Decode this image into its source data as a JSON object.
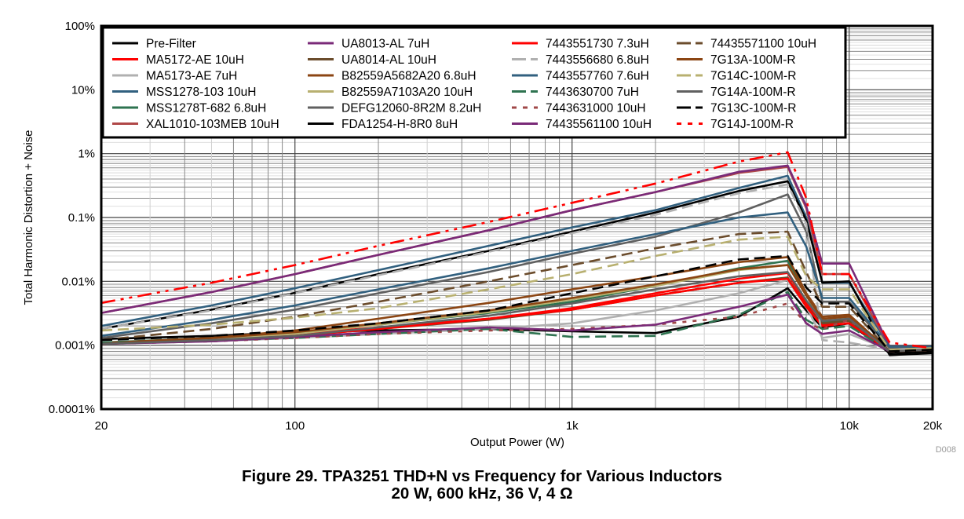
{
  "figure": {
    "caption_line1": "Figure 29. TPA3251 THD+N vs Frequency for Various Inductors",
    "caption_line2": "20 W, 600 kHz, 36 V, 4 Ω",
    "figure_code": "D008"
  },
  "chart_data": {
    "type": "line",
    "title": "Figure 29. TPA3251 THD+N vs Frequency for Various Inductors",
    "subtitle": "20 W, 600 kHz, 36 V, 4 Ω",
    "xlabel": "Output Power (W)",
    "ylabel": "Total Harmonic Distortion + Noise",
    "xscale": "log",
    "yscale": "log",
    "xlim": [
      20,
      20000
    ],
    "ylim": [
      0.0001,
      100
    ],
    "grid": true,
    "legend_position": "top-center",
    "x_ticks": [
      {
        "value": 20,
        "label": "20"
      },
      {
        "value": 100,
        "label": "100"
      },
      {
        "value": 1000,
        "label": "1k"
      },
      {
        "value": 10000,
        "label": "10k"
      },
      {
        "value": 20000,
        "label": "20k"
      }
    ],
    "y_ticks": [
      {
        "value": 100,
        "label": "100%"
      },
      {
        "value": 10,
        "label": "10%"
      },
      {
        "value": 1,
        "label": "1%"
      },
      {
        "value": 0.1,
        "label": "0.1%"
      },
      {
        "value": 0.01,
        "label": "0.01%"
      },
      {
        "value": 0.001,
        "label": "0.001%"
      },
      {
        "value": 0.0001,
        "label": "0.0001%"
      }
    ],
    "x": [
      20,
      50,
      100,
      200,
      500,
      1000,
      2000,
      4000,
      6000,
      7000,
      8000,
      10000,
      14000,
      20000
    ],
    "series": [
      {
        "name": "Pre-Filter",
        "color": "#000000",
        "dash": "solid",
        "values": [
          0.00125,
          0.0014,
          0.0016,
          0.0017,
          0.0018,
          0.00165,
          0.00155,
          0.0028,
          0.0078,
          0.0035,
          0.0019,
          0.0022,
          0.00075,
          0.0008
        ]
      },
      {
        "name": "MA5172-AE 10uH",
        "color": "#ff0000",
        "dash": "solid",
        "values": [
          0.00105,
          0.0012,
          0.0015,
          0.0019,
          0.0026,
          0.0038,
          0.0065,
          0.011,
          0.0135,
          0.0045,
          0.0021,
          0.0024,
          0.0008,
          0.00085
        ]
      },
      {
        "name": "MA5173-AE 7uH",
        "color": "#b0b0b0",
        "dash": "solid",
        "values": [
          0.00105,
          0.00115,
          0.0013,
          0.0015,
          0.0018,
          0.0022,
          0.0035,
          0.0065,
          0.0105,
          0.004,
          0.0013,
          0.0015,
          0.00085,
          0.0009
        ]
      },
      {
        "name": "MSS1278-103 10uH",
        "color": "#31607f",
        "dash": "solid",
        "values": [
          0.002,
          0.0042,
          0.0078,
          0.015,
          0.036,
          0.07,
          0.13,
          0.29,
          0.45,
          0.1,
          0.0095,
          0.0095,
          0.00095,
          0.00095
        ]
      },
      {
        "name": "MSS1278T-682 6.8uH",
        "color": "#2e7350",
        "dash": "solid",
        "values": [
          0.0011,
          0.0013,
          0.0016,
          0.0021,
          0.0032,
          0.0048,
          0.0085,
          0.016,
          0.021,
          0.006,
          0.0023,
          0.0026,
          0.0008,
          0.00085
        ]
      },
      {
        "name": "XAL1010-103MEB 10uH",
        "color": "#b04848",
        "dash": "solid",
        "values": [
          0.0032,
          0.0068,
          0.013,
          0.026,
          0.063,
          0.13,
          0.25,
          0.5,
          0.62,
          0.14,
          0.013,
          0.013,
          0.00095,
          0.00095
        ]
      },
      {
        "name": "UA8013-AL 7uH",
        "color": "#7a2a78",
        "dash": "solid",
        "values": [
          0.0032,
          0.0068,
          0.013,
          0.026,
          0.063,
          0.13,
          0.25,
          0.52,
          0.65,
          0.15,
          0.019,
          0.019,
          0.00095,
          0.00095
        ]
      },
      {
        "name": "UA8014-AL 10uH",
        "color": "#6b4c2c",
        "dash": "solid",
        "values": [
          0.00105,
          0.0012,
          0.0014,
          0.0018,
          0.0025,
          0.0036,
          0.006,
          0.0095,
          0.0115,
          0.004,
          0.0022,
          0.0024,
          0.0008,
          0.00085
        ]
      },
      {
        "name": "B82559A5682A20 6.8uH",
        "color": "#8b4513",
        "dash": "solid",
        "values": [
          0.00108,
          0.0013,
          0.0017,
          0.0026,
          0.0046,
          0.0075,
          0.012,
          0.02,
          0.024,
          0.0065,
          0.0028,
          0.003,
          0.0008,
          0.00085
        ]
      },
      {
        "name": "B82559A7103A20 10uH",
        "color": "#b8b070",
        "dash": "solid",
        "values": [
          0.00105,
          0.0012,
          0.0015,
          0.0021,
          0.0033,
          0.0052,
          0.0085,
          0.015,
          0.018,
          0.006,
          0.0025,
          0.0027,
          0.0008,
          0.00085
        ]
      },
      {
        "name": "DEFG12060-8R2M 8.2uH",
        "color": "#606060",
        "dash": "solid",
        "values": [
          0.0013,
          0.0022,
          0.0036,
          0.0065,
          0.014,
          0.027,
          0.05,
          0.12,
          0.23,
          0.06,
          0.0048,
          0.0048,
          0.0009,
          0.0009
        ]
      },
      {
        "name": "FDA1254-H-8R0 8uH",
        "color": "#000000",
        "dash": "solid",
        "values": [
          0.0018,
          0.0036,
          0.0066,
          0.013,
          0.03,
          0.06,
          0.12,
          0.26,
          0.37,
          0.09,
          0.0095,
          0.01,
          0.0007,
          0.00075
        ]
      },
      {
        "name": "7443551730 7.3uH",
        "color": "#ff0000",
        "dash": "solid",
        "values": [
          0.00105,
          0.00118,
          0.0014,
          0.0018,
          0.0026,
          0.0036,
          0.006,
          0.0095,
          0.011,
          0.004,
          0.002,
          0.0022,
          0.0008,
          0.00085
        ]
      },
      {
        "name": "7443556680 6.8uH",
        "color": "#b0b0b0",
        "dash": "dashed",
        "values": [
          0.0018,
          0.0035,
          0.0065,
          0.0125,
          0.029,
          0.057,
          0.11,
          0.24,
          0.33,
          0.08,
          0.0012,
          0.0011,
          0.00085,
          0.0009
        ]
      },
      {
        "name": "7443557760 7.6uH",
        "color": "#31607f",
        "dash": "solid",
        "values": [
          0.0014,
          0.0025,
          0.0042,
          0.0075,
          0.016,
          0.03,
          0.055,
          0.1,
          0.12,
          0.035,
          0.0055,
          0.0055,
          0.00095,
          0.00095
        ]
      },
      {
        "name": "7443630700 7uH",
        "color": "#2e7350",
        "dash": "dashed",
        "values": [
          0.0011,
          0.00118,
          0.0013,
          0.0015,
          0.0018,
          0.00135,
          0.0014,
          0.003,
          0.0068,
          0.0025,
          0.0018,
          0.002,
          0.0008,
          0.00085
        ]
      },
      {
        "name": "7443631000 10uH",
        "color": "#a04848",
        "dash": "dotted",
        "values": [
          0.00105,
          0.00115,
          0.0013,
          0.0015,
          0.0017,
          0.0018,
          0.0021,
          0.0028,
          0.0045,
          0.0022,
          0.0018,
          0.0025,
          0.0008,
          0.00085
        ]
      },
      {
        "name": "74435561100 10uH",
        "color": "#7a2a78",
        "dash": "solid",
        "values": [
          0.00105,
          0.00115,
          0.00135,
          0.0016,
          0.0019,
          0.0017,
          0.0021,
          0.004,
          0.0062,
          0.0022,
          0.0015,
          0.0017,
          0.0008,
          0.00085
        ]
      },
      {
        "name": "74435571100 10uH",
        "color": "#6b4c2c",
        "dash": "dashed",
        "values": [
          0.0012,
          0.0018,
          0.0028,
          0.0048,
          0.01,
          0.018,
          0.033,
          0.055,
          0.06,
          0.014,
          0.004,
          0.004,
          0.0008,
          0.00085
        ]
      },
      {
        "name": "7G13A-100M-R",
        "color": "#8b4513",
        "dash": "solid",
        "values": [
          0.00105,
          0.0013,
          0.0016,
          0.0022,
          0.0035,
          0.0055,
          0.009,
          0.0155,
          0.018,
          0.006,
          0.0026,
          0.0028,
          0.0008,
          0.00085
        ]
      },
      {
        "name": "7G14C-100M-R",
        "color": "#b8b070",
        "dash": "dashed",
        "values": [
          0.0017,
          0.0021,
          0.0027,
          0.0038,
          0.0075,
          0.013,
          0.025,
          0.045,
          0.05,
          0.012,
          0.0075,
          0.0075,
          0.00085,
          0.0009
        ]
      },
      {
        "name": "7G14A-100M-R",
        "color": "#606060",
        "dash": "solid",
        "values": [
          0.00105,
          0.0012,
          0.0014,
          0.0019,
          0.0029,
          0.0045,
          0.0075,
          0.012,
          0.014,
          0.005,
          0.0024,
          0.0026,
          0.0008,
          0.00085
        ]
      },
      {
        "name": "7G13C-100M-R",
        "color": "#000000",
        "dash": "dashed",
        "values": [
          0.0012,
          0.0014,
          0.0017,
          0.0022,
          0.0035,
          0.0065,
          0.012,
          0.022,
          0.025,
          0.008,
          0.0045,
          0.0045,
          0.0008,
          0.00085
        ]
      },
      {
        "name": "7G14J-100M-R",
        "color": "#ff0000",
        "dash": "dashdot",
        "values": [
          0.0046,
          0.0095,
          0.018,
          0.036,
          0.085,
          0.17,
          0.34,
          0.75,
          1.05,
          0.2,
          0.013,
          0.013,
          0.0011,
          0.0009
        ]
      }
    ]
  }
}
